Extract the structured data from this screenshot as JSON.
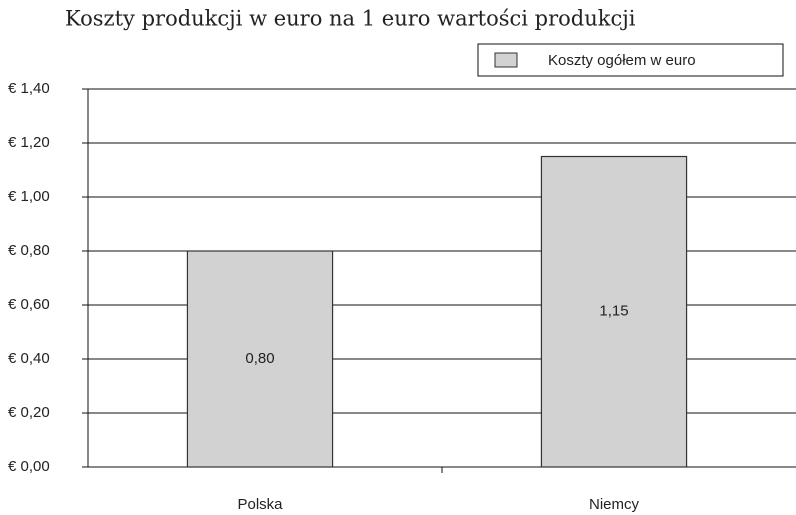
{
  "chart_data": {
    "type": "bar",
    "title": "Koszty produkcji w euro na 1 euro wartości produkcji",
    "categories": [
      "Polska",
      "Niemcy"
    ],
    "series": [
      {
        "name": "Koszty ogółem w euro",
        "color": "#d2d2d2",
        "values": [
          0.8,
          1.15
        ],
        "value_labels": [
          "0,80",
          "1,15"
        ]
      }
    ],
    "ylim": [
      0,
      1.4
    ],
    "yticks": [
      {
        "value": 0,
        "label": "€ 0,00"
      },
      {
        "value": 0.2,
        "label": "€ 0,20"
      },
      {
        "value": 0.4,
        "label": "€ 0,40"
      },
      {
        "value": 0.6,
        "label": "€ 0,60"
      },
      {
        "value": 0.8,
        "label": "€ 0,80"
      },
      {
        "value": 1.0,
        "label": "€ 1,00"
      },
      {
        "value": 1.2,
        "label": "€ 1,20"
      },
      {
        "value": 1.4,
        "label": "€ 1,40"
      }
    ],
    "grid": true,
    "legend": "top-right"
  }
}
